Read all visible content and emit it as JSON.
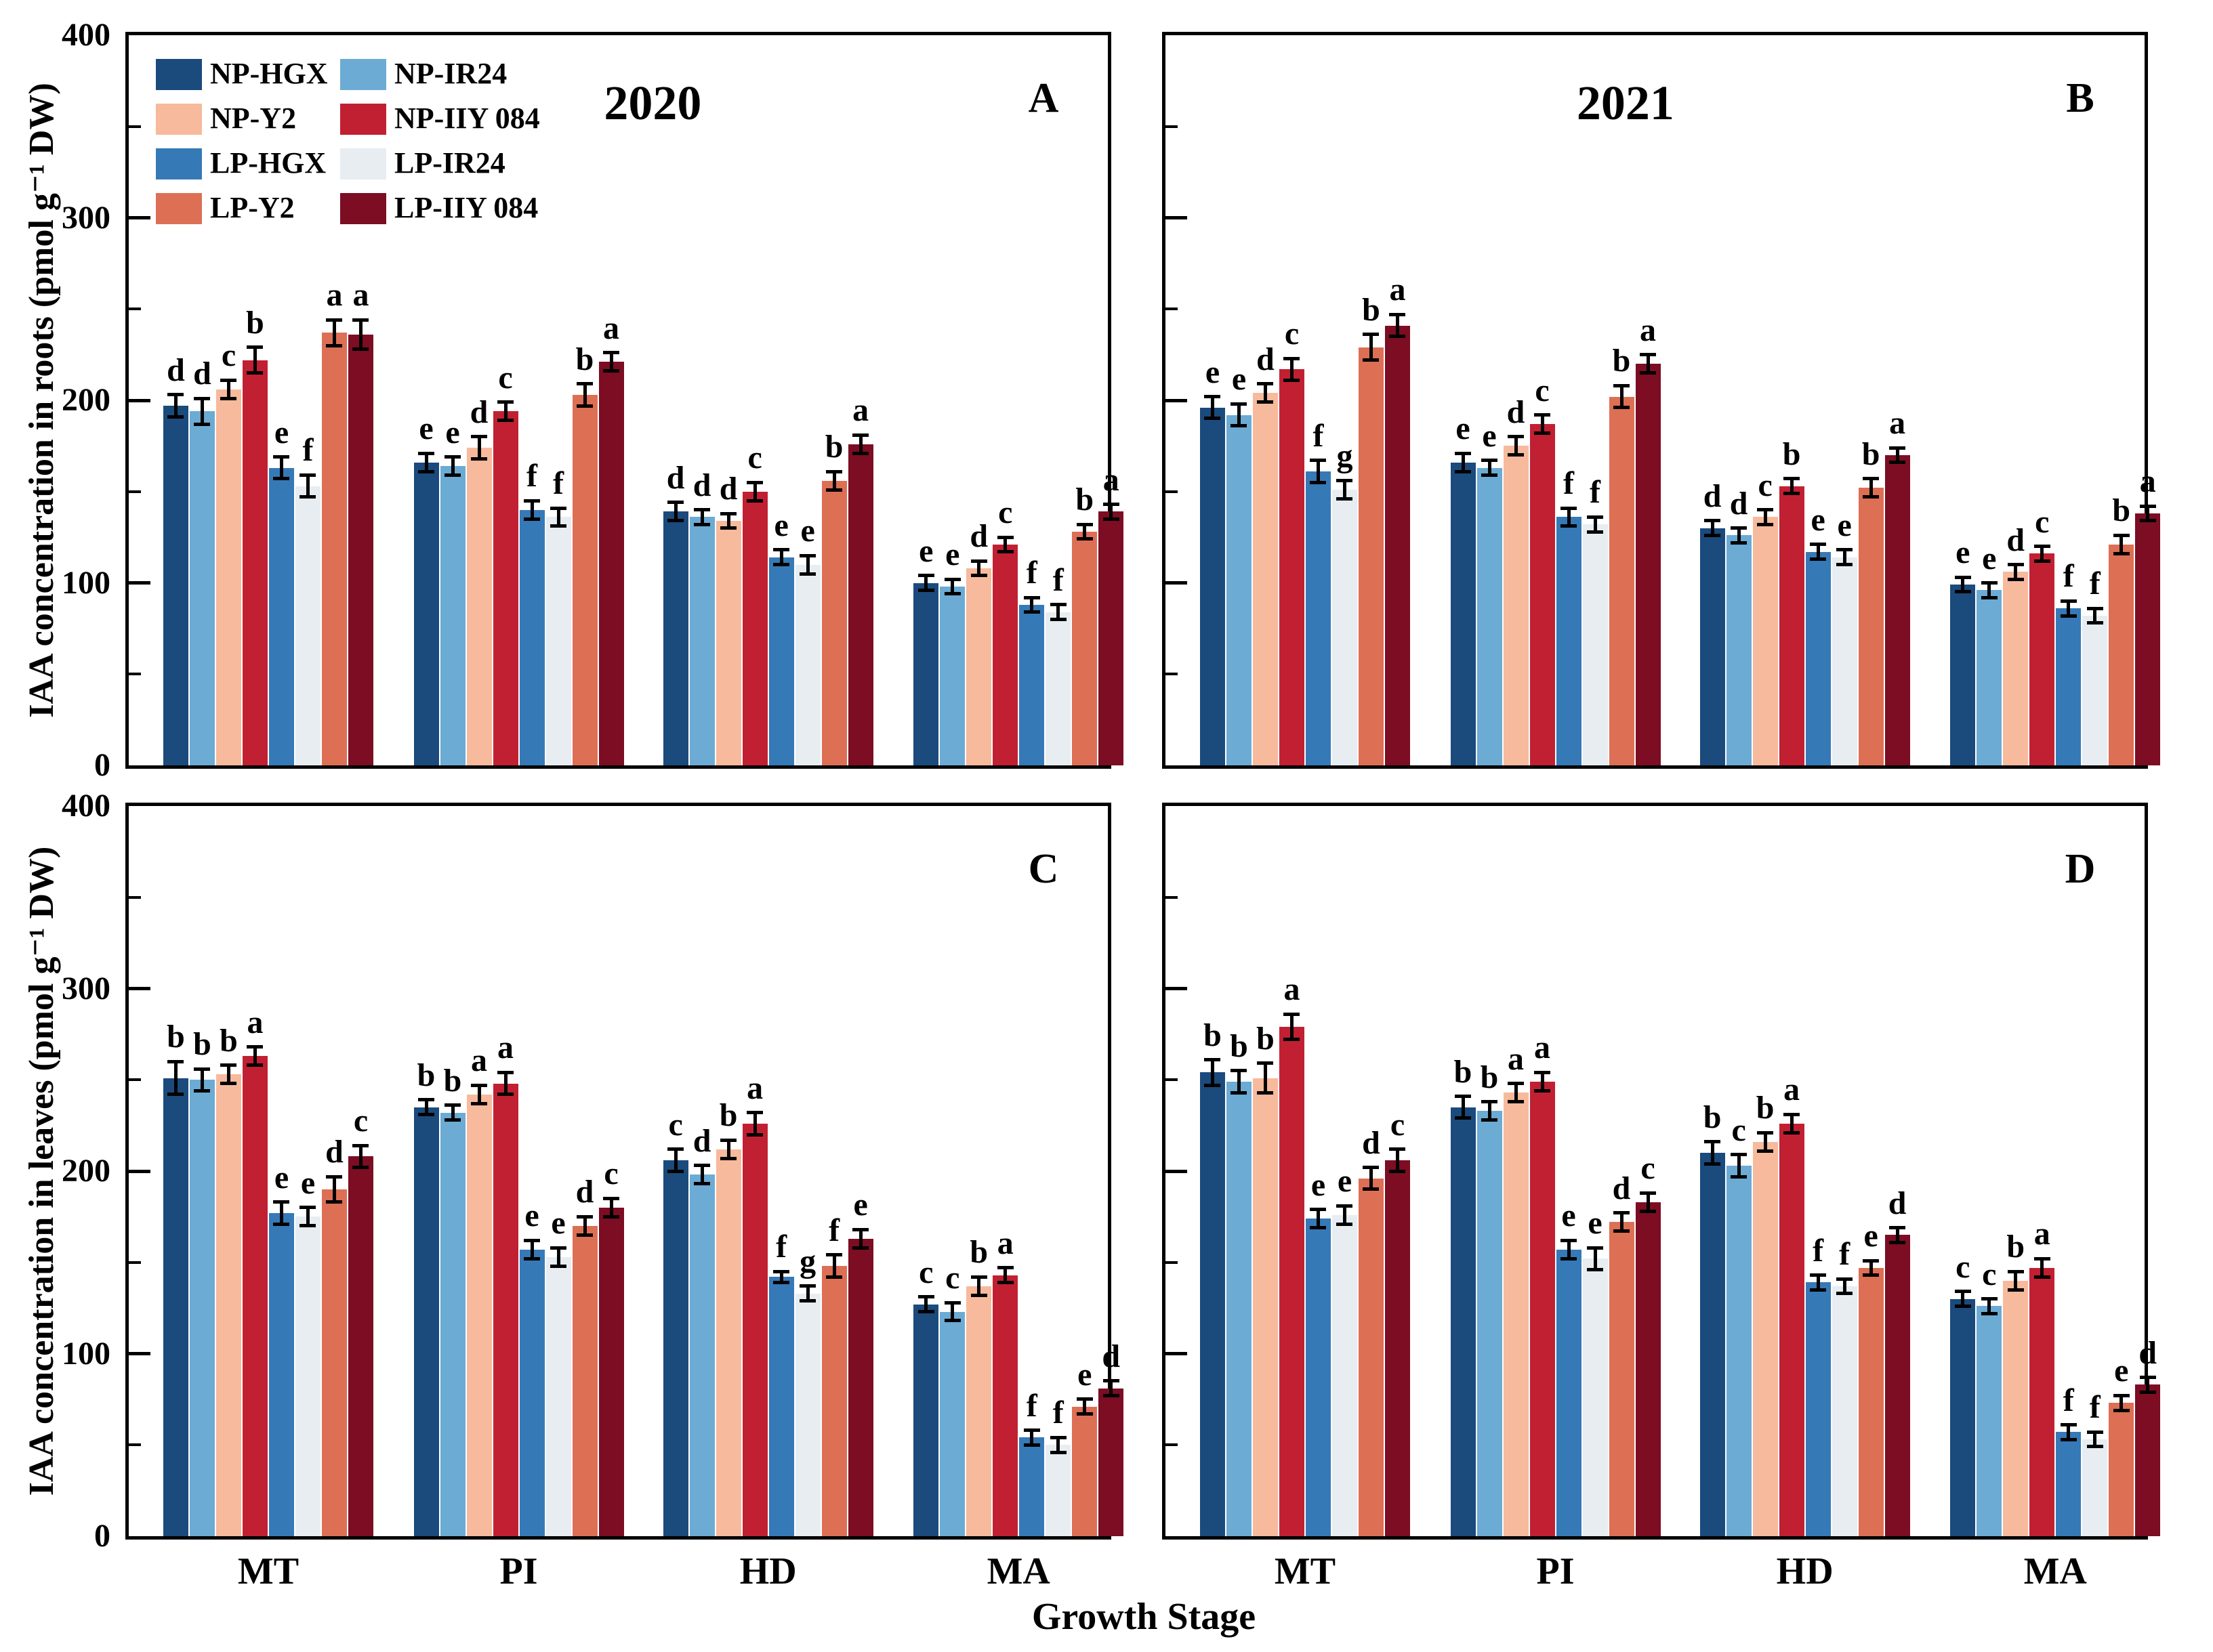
{
  "figure": {
    "labels": {
      "ylabel_roots": "IAA concentration in roots (pmol g⁻¹ DW)",
      "ylabel_leaves": "IAA concentration in leaves (pmol g⁻¹ DW)",
      "xlabel": "Growth Stage"
    }
  },
  "legend": {
    "position": "top-left of panel A",
    "items": [
      {
        "label": "NP-HGX",
        "color": "#1b4a7c"
      },
      {
        "label": "NP-IR24",
        "color": "#6cabd4"
      },
      {
        "label": "NP-Y2",
        "color": "#f7ba9c"
      },
      {
        "label": "NP-IIY 084",
        "color": "#c12032"
      },
      {
        "label": "LP-HGX",
        "color": "#3679b7"
      },
      {
        "label": "LP-IR24",
        "color": "#e7edf1"
      },
      {
        "label": "LP-Y2",
        "color": "#dd6f55"
      },
      {
        "label": "LP-IIY 084",
        "color": "#7c0d23"
      }
    ]
  },
  "categories": [
    "MT",
    "PI",
    "HD",
    "MA"
  ],
  "y_axis": {
    "min": 0,
    "max": 400,
    "major_ticks": [
      0,
      100,
      200,
      300,
      400
    ],
    "minor_step": 50,
    "grid": false
  },
  "chart_data": [
    {
      "id": "A",
      "type": "bar",
      "panel_letter": "A",
      "title": "2020",
      "location": "roots",
      "xlabel": "",
      "ylabel": "IAA concentration in roots (pmol g⁻¹ DW)",
      "ylim": [
        0,
        400
      ],
      "categories": [
        "MT",
        "PI",
        "HD",
        "MA"
      ],
      "series": [
        {
          "name": "NP-HGX",
          "values": [
            197,
            166,
            139,
            100
          ],
          "errors": [
            6,
            5,
            5,
            4
          ],
          "letters": [
            "d",
            "e",
            "d",
            "e"
          ]
        },
        {
          "name": "NP-IR24",
          "values": [
            194,
            164,
            136,
            98
          ],
          "errors": [
            7,
            5,
            4,
            4
          ],
          "letters": [
            "d",
            "e",
            "d",
            "e"
          ]
        },
        {
          "name": "NP-Y2",
          "values": [
            206,
            174,
            134,
            108
          ],
          "errors": [
            5,
            6,
            4,
            4
          ],
          "letters": [
            "c",
            "d",
            "d",
            "d"
          ]
        },
        {
          "name": "NP-IIY 084",
          "values": [
            222,
            194,
            150,
            121
          ],
          "errors": [
            7,
            5,
            5,
            4
          ],
          "letters": [
            "b",
            "c",
            "c",
            "c"
          ]
        },
        {
          "name": "LP-HGX",
          "values": [
            163,
            140,
            114,
            88
          ],
          "errors": [
            6,
            5,
            4,
            4
          ],
          "letters": [
            "e",
            "f",
            "e",
            "f"
          ]
        },
        {
          "name": "LP-IR24",
          "values": [
            153,
            136,
            110,
            84
          ],
          "errors": [
            6,
            5,
            5,
            4
          ],
          "letters": [
            "f",
            "f",
            "e",
            "f"
          ]
        },
        {
          "name": "LP-Y2",
          "values": [
            237,
            203,
            156,
            128
          ],
          "errors": [
            7,
            6,
            5,
            4
          ],
          "letters": [
            "a",
            "b",
            "b",
            "b"
          ]
        },
        {
          "name": "LP-IIY 084",
          "values": [
            236,
            221,
            176,
            139
          ],
          "errors": [
            8,
            5,
            5,
            4
          ],
          "letters": [
            "a",
            "a",
            "a",
            "a"
          ]
        }
      ]
    },
    {
      "id": "B",
      "type": "bar",
      "panel_letter": "B",
      "title": "2021",
      "location": "roots",
      "xlabel": "",
      "ylabel": "IAA concentration in roots (pmol g⁻¹ DW)",
      "ylim": [
        0,
        400
      ],
      "categories": [
        "MT",
        "PI",
        "HD",
        "MA"
      ],
      "series": [
        {
          "name": "NP-HGX",
          "values": [
            196,
            166,
            130,
            99
          ],
          "errors": [
            6,
            5,
            4,
            4
          ],
          "letters": [
            "e",
            "e",
            "d",
            "e"
          ]
        },
        {
          "name": "NP-IR24",
          "values": [
            192,
            163,
            126,
            96
          ],
          "errors": [
            6,
            4,
            4,
            4
          ],
          "letters": [
            "e",
            "e",
            "d",
            "e"
          ]
        },
        {
          "name": "NP-Y2",
          "values": [
            204,
            175,
            136,
            106
          ],
          "errors": [
            5,
            5,
            4,
            4
          ],
          "letters": [
            "d",
            "d",
            "c",
            "d"
          ]
        },
        {
          "name": "NP-IIY 084",
          "values": [
            217,
            187,
            153,
            116
          ],
          "errors": [
            6,
            5,
            4,
            4
          ],
          "letters": [
            "c",
            "c",
            "b",
            "c"
          ]
        },
        {
          "name": "LP-HGX",
          "values": [
            161,
            136,
            117,
            86
          ],
          "errors": [
            6,
            5,
            4,
            4
          ],
          "letters": [
            "f",
            "f",
            "e",
            "f"
          ]
        },
        {
          "name": "LP-IR24",
          "values": [
            151,
            132,
            114,
            82
          ],
          "errors": [
            5,
            4,
            4,
            4
          ],
          "letters": [
            "g",
            "f",
            "e",
            "f"
          ]
        },
        {
          "name": "LP-Y2",
          "values": [
            229,
            202,
            152,
            121
          ],
          "errors": [
            7,
            6,
            5,
            5
          ],
          "letters": [
            "b",
            "b",
            "b",
            "b"
          ]
        },
        {
          "name": "LP-IIY 084",
          "values": [
            241,
            220,
            170,
            138
          ],
          "errors": [
            6,
            5,
            4,
            4
          ],
          "letters": [
            "a",
            "a",
            "a",
            "a"
          ]
        }
      ]
    },
    {
      "id": "C",
      "type": "bar",
      "panel_letter": "C",
      "title": "",
      "location": "leaves",
      "xlabel": "Growth Stage",
      "ylabel": "IAA concentration in leaves (pmol g⁻¹ DW)",
      "ylim": [
        0,
        400
      ],
      "categories": [
        "MT",
        "PI",
        "HD",
        "MA"
      ],
      "series": [
        {
          "name": "NP-HGX",
          "values": [
            251,
            235,
            206,
            127
          ],
          "errors": [
            9,
            4,
            6,
            4
          ],
          "letters": [
            "b",
            "b",
            "c",
            "c"
          ]
        },
        {
          "name": "NP-IR24",
          "values": [
            250,
            232,
            198,
            123
          ],
          "errors": [
            6,
            4,
            5,
            5
          ],
          "letters": [
            "b",
            "b",
            "d",
            "c"
          ]
        },
        {
          "name": "NP-Y2",
          "values": [
            253,
            242,
            212,
            137
          ],
          "errors": [
            5,
            5,
            5,
            5
          ],
          "letters": [
            "b",
            "a",
            "b",
            "b"
          ]
        },
        {
          "name": "NP-IIY 084",
          "values": [
            263,
            248,
            226,
            143
          ],
          "errors": [
            5,
            6,
            6,
            4
          ],
          "letters": [
            "a",
            "a",
            "a",
            "a"
          ]
        },
        {
          "name": "LP-HGX",
          "values": [
            177,
            157,
            142,
            54
          ],
          "errors": [
            6,
            5,
            3,
            4
          ],
          "letters": [
            "e",
            "e",
            "f",
            "f"
          ]
        },
        {
          "name": "LP-IR24",
          "values": [
            175,
            153,
            133,
            50
          ],
          "errors": [
            5,
            5,
            4,
            4
          ],
          "letters": [
            "e",
            "e",
            "g",
            "f"
          ]
        },
        {
          "name": "LP-Y2",
          "values": [
            190,
            170,
            148,
            71
          ],
          "errors": [
            7,
            5,
            6,
            4
          ],
          "letters": [
            "d",
            "d",
            "f",
            "e"
          ]
        },
        {
          "name": "LP-IIY 084",
          "values": [
            208,
            180,
            163,
            81
          ],
          "errors": [
            6,
            5,
            5,
            4
          ],
          "letters": [
            "c",
            "c",
            "e",
            "d"
          ]
        }
      ]
    },
    {
      "id": "D",
      "type": "bar",
      "panel_letter": "D",
      "title": "",
      "location": "leaves",
      "xlabel": "Growth Stage",
      "ylabel": "IAA concentration in leaves (pmol g⁻¹ DW)",
      "ylim": [
        0,
        400
      ],
      "categories": [
        "MT",
        "PI",
        "HD",
        "MA"
      ],
      "series": [
        {
          "name": "NP-HGX",
          "values": [
            254,
            235,
            210,
            130
          ],
          "errors": [
            7,
            6,
            6,
            4
          ],
          "letters": [
            "b",
            "b",
            "b",
            "c"
          ]
        },
        {
          "name": "NP-IR24",
          "values": [
            249,
            233,
            203,
            126
          ],
          "errors": [
            6,
            5,
            6,
            4
          ],
          "letters": [
            "b",
            "b",
            "c",
            "c"
          ]
        },
        {
          "name": "NP-Y2",
          "values": [
            251,
            243,
            216,
            140
          ],
          "errors": [
            8,
            5,
            5,
            5
          ],
          "letters": [
            "b",
            "a",
            "b",
            "b"
          ]
        },
        {
          "name": "NP-IIY 084",
          "values": [
            279,
            249,
            226,
            147
          ],
          "errors": [
            7,
            5,
            5,
            5
          ],
          "letters": [
            "a",
            "a",
            "a",
            "a"
          ]
        },
        {
          "name": "LP-HGX",
          "values": [
            174,
            157,
            139,
            57
          ],
          "errors": [
            5,
            5,
            4,
            4
          ],
          "letters": [
            "e",
            "e",
            "f",
            "f"
          ]
        },
        {
          "name": "LP-IR24",
          "values": [
            176,
            152,
            137,
            53
          ],
          "errors": [
            5,
            6,
            4,
            4
          ],
          "letters": [
            "e",
            "e",
            "f",
            "f"
          ]
        },
        {
          "name": "LP-Y2",
          "values": [
            196,
            172,
            147,
            73
          ],
          "errors": [
            6,
            5,
            4,
            4
          ],
          "letters": [
            "d",
            "d",
            "e",
            "e"
          ]
        },
        {
          "name": "LP-IIY 084",
          "values": [
            206,
            183,
            165,
            83
          ],
          "errors": [
            6,
            5,
            4,
            4
          ],
          "letters": [
            "c",
            "c",
            "d",
            "d"
          ]
        }
      ]
    }
  ]
}
